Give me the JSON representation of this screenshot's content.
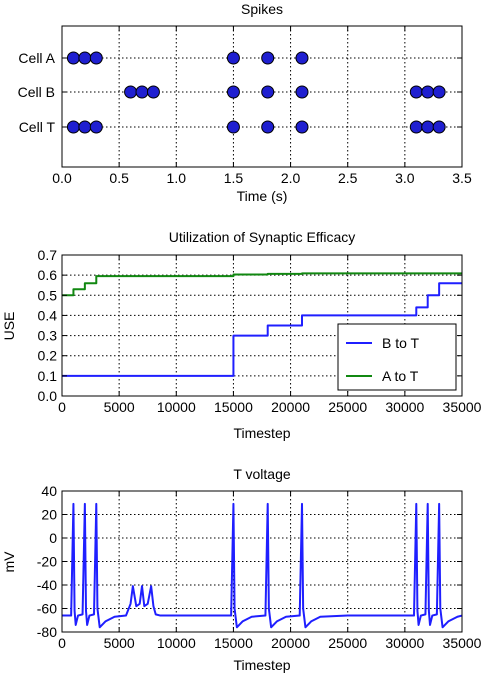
{
  "chart_data": [
    {
      "type": "scatter",
      "title": "Spikes",
      "xlabel": "Time (s)",
      "ylabel": "",
      "xlim": [
        0,
        3.5
      ],
      "xticks": [
        "0.0",
        "0.5",
        "1.0",
        "1.5",
        "2.0",
        "2.5",
        "3.0",
        "3.5"
      ],
      "grid": true,
      "marker_color": "#1f1fd0",
      "series": [
        {
          "name": "Cell A",
          "x": [
            0.1,
            0.2,
            0.3,
            1.5,
            1.8,
            2.1
          ]
        },
        {
          "name": "Cell B",
          "x": [
            0.6,
            0.7,
            0.8,
            1.5,
            1.8,
            2.1,
            3.1,
            3.2,
            3.3
          ]
        },
        {
          "name": "Cell T",
          "x": [
            0.1,
            0.2,
            0.3,
            1.5,
            1.8,
            2.1,
            3.1,
            3.2,
            3.3
          ]
        }
      ]
    },
    {
      "type": "line",
      "title": "Utilization of Synaptic Efficacy",
      "xlabel": "Timestep",
      "ylabel": "USE",
      "xlim": [
        0,
        35000
      ],
      "ylim": [
        0,
        0.7
      ],
      "xticks": [
        "0",
        "5000",
        "10000",
        "15000",
        "20000",
        "25000",
        "30000",
        "35000"
      ],
      "yticks": [
        "0.0",
        "0.1",
        "0.2",
        "0.3",
        "0.4",
        "0.5",
        "0.6",
        "0.7"
      ],
      "grid": true,
      "legend_position": "lower-right",
      "series": [
        {
          "name": "B to T",
          "color": "#1f1fff",
          "x": [
            0,
            15000,
            15000,
            18000,
            18000,
            21000,
            21000,
            31000,
            31000,
            32000,
            32000,
            33000,
            33000,
            35000
          ],
          "y": [
            0.1,
            0.1,
            0.3,
            0.3,
            0.35,
            0.35,
            0.4,
            0.4,
            0.44,
            0.44,
            0.5,
            0.5,
            0.56,
            0.56
          ]
        },
        {
          "name": "A to T",
          "color": "#118811",
          "x": [
            0,
            1000,
            1000,
            2000,
            2000,
            3000,
            3000,
            15000,
            15000,
            18000,
            18000,
            21000,
            21000,
            35000
          ],
          "y": [
            0.5,
            0.5,
            0.53,
            0.53,
            0.56,
            0.56,
            0.595,
            0.595,
            0.603,
            0.603,
            0.606,
            0.606,
            0.609,
            0.609
          ]
        }
      ]
    },
    {
      "type": "line",
      "title": "T voltage",
      "xlabel": "Timestep",
      "ylabel": "mV",
      "xlim": [
        0,
        35000
      ],
      "ylim": [
        -80,
        40
      ],
      "xticks": [
        "0",
        "5000",
        "10000",
        "15000",
        "20000",
        "25000",
        "30000",
        "35000"
      ],
      "yticks": [
        "-80",
        "-60",
        "-40",
        "-20",
        "0",
        "20",
        "40"
      ],
      "grid": true,
      "series": [
        {
          "name": "",
          "color": "#1f1fff",
          "x": [
            0,
            800,
            1000,
            1100,
            1200,
            1400,
            1800,
            2000,
            2100,
            2200,
            2400,
            2800,
            3000,
            3100,
            3300,
            3800,
            4600,
            5600,
            6000,
            6200,
            6500,
            6800,
            7000,
            7200,
            7500,
            7800,
            8000,
            8200,
            8600,
            10000,
            12000,
            14800,
            15000,
            15100,
            15300,
            15800,
            16600,
            17800,
            18000,
            18100,
            18300,
            18800,
            19600,
            20800,
            21000,
            21100,
            21300,
            21800,
            22600,
            25000,
            28000,
            30800,
            31000,
            31100,
            31200,
            31400,
            31800,
            32000,
            32100,
            32200,
            32400,
            32800,
            33000,
            33100,
            33300,
            33800,
            34600,
            35000
          ],
          "y": [
            -66,
            -66,
            29,
            -62,
            -74,
            -66,
            -65,
            29,
            -62,
            -74,
            -66,
            -65,
            29,
            -60,
            -76,
            -71,
            -67,
            -66,
            -56,
            -41,
            -58,
            -56,
            -41,
            -58,
            -56,
            -41,
            -58,
            -65,
            -66,
            -66,
            -66,
            -66,
            29,
            -60,
            -76,
            -71,
            -67,
            -66,
            29,
            -60,
            -76,
            -71,
            -67,
            -66,
            29,
            -60,
            -76,
            -71,
            -67,
            -66,
            -66,
            -66,
            29,
            -62,
            -74,
            -66,
            -65,
            29,
            -62,
            -74,
            -66,
            -65,
            29,
            -60,
            -76,
            -71,
            -67,
            -66
          ]
        }
      ]
    }
  ]
}
